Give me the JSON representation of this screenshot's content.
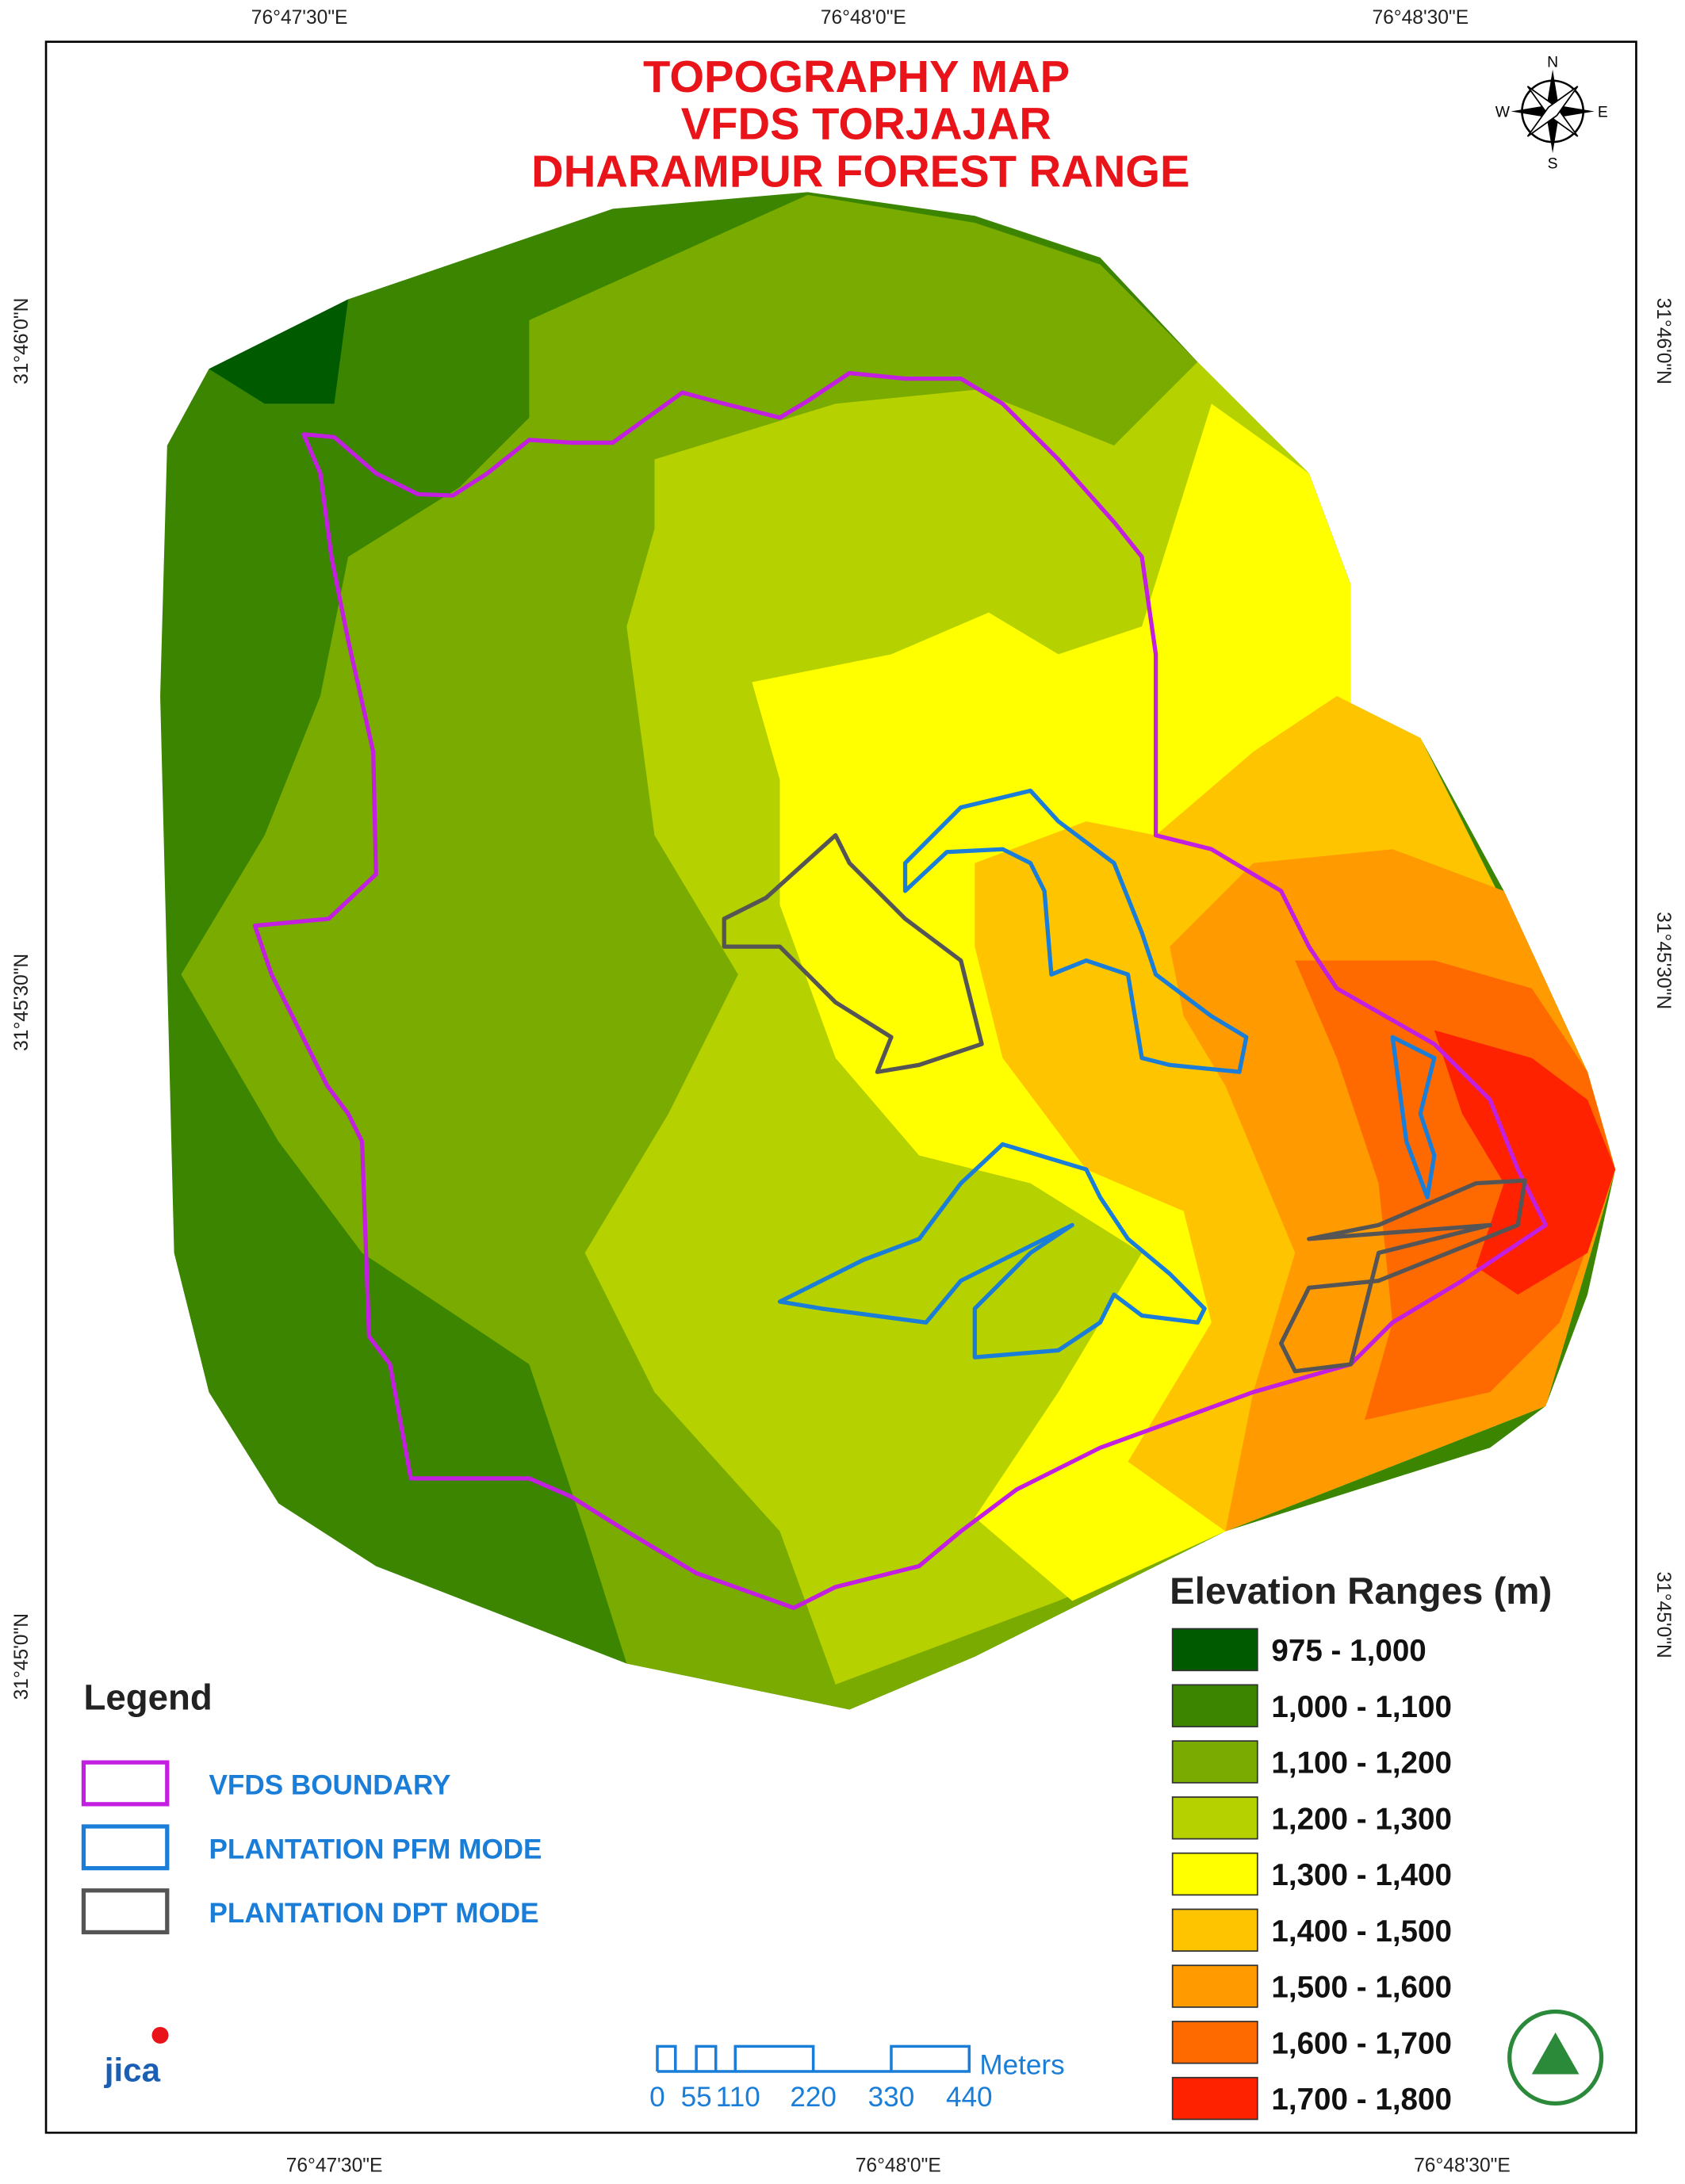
{
  "title": [
    "TOPOGRAPHY MAP",
    "VFDS TORJAJAR",
    "DHARAMPUR FOREST RANGE"
  ],
  "coordinates": {
    "top": [
      "76°47'30\"E",
      "76°48'0\"E",
      "76°48'30\"E"
    ],
    "bottom": [
      "76°47'30\"E",
      "76°48'0\"E",
      "76°48'30\"E"
    ],
    "left": [
      "31°46'0\"N",
      "31°45'30\"N",
      "31°45'0\"N"
    ],
    "right": [
      "31°46'0\"N",
      "31°45'30\"N",
      "31°45'0\"N"
    ]
  },
  "compass": {
    "n": "N",
    "e": "E",
    "s": "S",
    "w": "W"
  },
  "legend": {
    "title": "Legend",
    "items": [
      {
        "label": "VFDS BOUNDARY",
        "color": "#c21fe0"
      },
      {
        "label": "PLANTATION PFM MODE",
        "color": "#1a7ed8"
      },
      {
        "label": "PLANTATION DPT MODE",
        "color": "#555555"
      }
    ]
  },
  "elevation": {
    "title": "Elevation Ranges (m)",
    "ranges": [
      {
        "label": "975 - 1,000",
        "color": "#005a00"
      },
      {
        "label": "1,000 - 1,100",
        "color": "#3b8500"
      },
      {
        "label": "1,100 - 1,200",
        "color": "#7aab00"
      },
      {
        "label": "1,200 - 1,300",
        "color": "#b5d100"
      },
      {
        "label": "1,300 - 1,400",
        "color": "#ffff00"
      },
      {
        "label": "1,400 - 1,500",
        "color": "#ffc400"
      },
      {
        "label": "1,500 - 1,600",
        "color": "#ff9a00"
      },
      {
        "label": "1,600 - 1,700",
        "color": "#ff6a00"
      },
      {
        "label": "1,700 - 1,800",
        "color": "#ff2200"
      }
    ]
  },
  "scale_bar": {
    "labels": [
      "0",
      "55",
      "110",
      "220",
      "330",
      "440"
    ],
    "unit": "Meters"
  },
  "logo": "jica"
}
